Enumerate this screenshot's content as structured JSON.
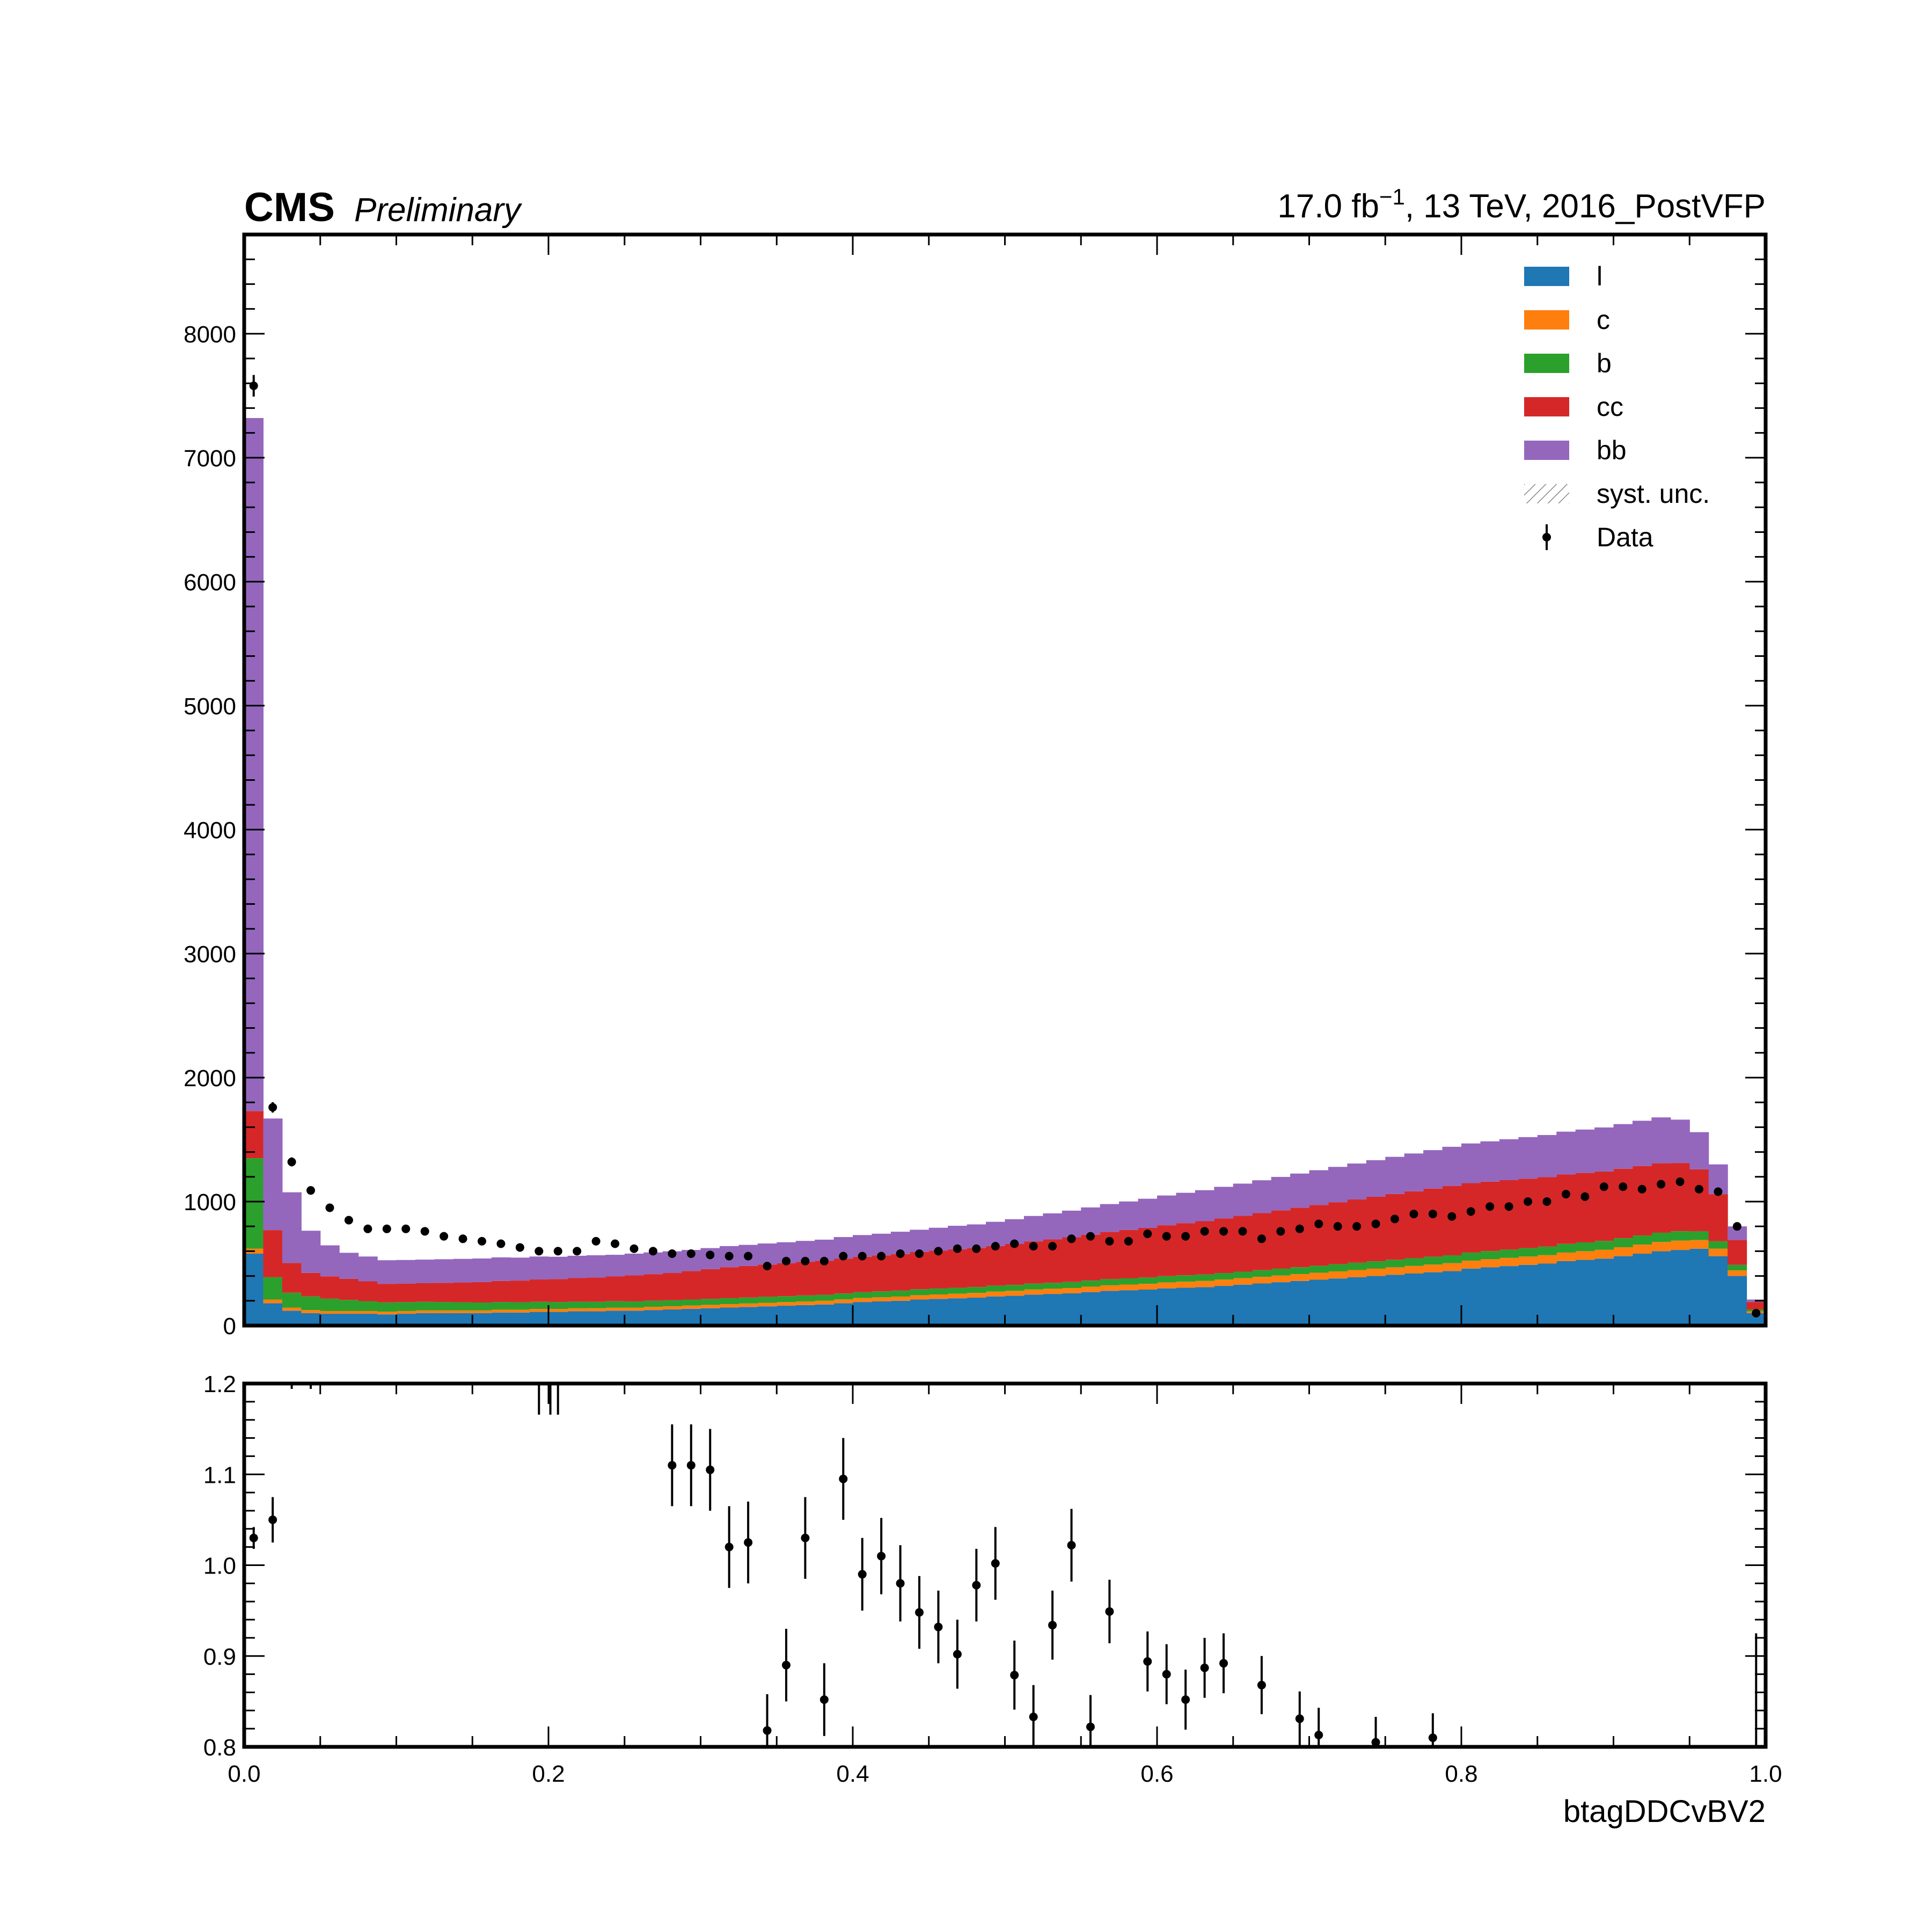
{
  "header": {
    "experiment": "CMS",
    "status": "Preliminary",
    "lumi_value": "17.0 fb",
    "lumi_exp": "−1",
    "lumi_rest": ", 13 TeV, 2016_PostVFP"
  },
  "chart_data": {
    "type": "bar",
    "stacked": true,
    "xlabel": "btagDDCvBV2",
    "ylabel": "",
    "xlim": [
      0.0,
      1.0
    ],
    "ylim": [
      0,
      8800
    ],
    "ratio_ylim": [
      0.8,
      1.2
    ],
    "legend_position": "top-right",
    "x_ticks": [
      "0.0",
      "0.2",
      "0.4",
      "0.6",
      "0.8",
      "1.0"
    ],
    "y_ticks": [
      "0",
      "1000",
      "2000",
      "3000",
      "4000",
      "5000",
      "6000",
      "7000",
      "8000"
    ],
    "ratio_y_ticks": [
      "0.8",
      "0.9",
      "1.0",
      "1.1",
      "1.2"
    ],
    "bins": 80,
    "series": [
      {
        "name": "l",
        "color": "#1f77b4",
        "values": [
          580,
          180,
          120,
          100,
          95,
          95,
          95,
          90,
          95,
          100,
          100,
          100,
          100,
          105,
          105,
          110,
          110,
          115,
          115,
          120,
          120,
          125,
          130,
          135,
          140,
          145,
          150,
          155,
          160,
          165,
          170,
          180,
          190,
          195,
          200,
          210,
          215,
          220,
          225,
          235,
          240,
          250,
          255,
          260,
          270,
          280,
          285,
          290,
          300,
          305,
          310,
          320,
          330,
          340,
          350,
          360,
          370,
          380,
          390,
          400,
          410,
          420,
          430,
          440,
          460,
          470,
          480,
          490,
          500,
          520,
          530,
          540,
          560,
          580,
          600,
          610,
          620,
          560,
          400,
          100
        ]
      },
      {
        "name": "c",
        "color": "#ff7f0e",
        "values": [
          40,
          30,
          25,
          25,
          22,
          22,
          22,
          22,
          22,
          22,
          22,
          22,
          22,
          23,
          23,
          24,
          24,
          24,
          25,
          25,
          25,
          26,
          26,
          27,
          27,
          28,
          28,
          29,
          29,
          30,
          30,
          31,
          32,
          33,
          34,
          35,
          36,
          37,
          38,
          39,
          40,
          41,
          42,
          43,
          44,
          45,
          46,
          47,
          48,
          49,
          50,
          51,
          52,
          53,
          54,
          55,
          56,
          57,
          58,
          59,
          60,
          61,
          62,
          63,
          64,
          65,
          66,
          67,
          68,
          69,
          70,
          71,
          72,
          73,
          74,
          75,
          70,
          60,
          45,
          15
        ]
      },
      {
        "name": "b",
        "color": "#2ca02c",
        "values": [
          730,
          180,
          120,
          110,
          100,
          90,
          80,
          75,
          72,
          70,
          68,
          66,
          64,
          62,
          60,
          58,
          56,
          54,
          52,
          51,
          50,
          49,
          48,
          48,
          48,
          48,
          48,
          48,
          48,
          48,
          48,
          48,
          48,
          48,
          48,
          48,
          48,
          48,
          48,
          48,
          48,
          48,
          48,
          49,
          49,
          50,
          50,
          51,
          51,
          52,
          52,
          53,
          53,
          54,
          55,
          56,
          57,
          58,
          59,
          60,
          61,
          62,
          63,
          64,
          65,
          66,
          67,
          68,
          69,
          70,
          71,
          72,
          73,
          74,
          75,
          76,
          70,
          60,
          45,
          15
        ]
      },
      {
        "name": "cc",
        "color": "#d62728",
        "values": [
          380,
          380,
          240,
          190,
          180,
          170,
          160,
          150,
          150,
          150,
          155,
          160,
          165,
          170,
          175,
          180,
          185,
          190,
          195,
          200,
          210,
          215,
          220,
          230,
          240,
          250,
          255,
          260,
          265,
          270,
          275,
          280,
          285,
          290,
          295,
          300,
          305,
          310,
          315,
          320,
          330,
          340,
          350,
          360,
          370,
          380,
          390,
          400,
          410,
          420,
          430,
          440,
          450,
          460,
          470,
          480,
          490,
          500,
          510,
          520,
          530,
          540,
          550,
          560,
          560,
          560,
          560,
          560,
          560,
          560,
          560,
          560,
          560,
          560,
          560,
          550,
          500,
          380,
          200,
          60
        ]
      },
      {
        "name": "bb",
        "color": "#9467bd",
        "values": [
          5590,
          900,
          570,
          340,
          250,
          210,
          200,
          190,
          190,
          190,
          190,
          190,
          190,
          190,
          185,
          185,
          180,
          180,
          180,
          175,
          175,
          175,
          175,
          170,
          170,
          170,
          170,
          170,
          170,
          170,
          170,
          175,
          175,
          175,
          180,
          180,
          185,
          190,
          190,
          195,
          200,
          205,
          210,
          215,
          220,
          225,
          230,
          235,
          240,
          245,
          250,
          255,
          260,
          265,
          270,
          275,
          280,
          285,
          290,
          295,
          300,
          305,
          310,
          315,
          320,
          325,
          330,
          335,
          340,
          345,
          350,
          355,
          360,
          365,
          370,
          350,
          300,
          240,
          110,
          20
        ]
      },
      {
        "name": "syst. unc.",
        "color": "#777777",
        "values": []
      }
    ],
    "data_name": "Data",
    "data_values": [
      7580,
      1760,
      1320,
      1090,
      950,
      850,
      780,
      780,
      780,
      760,
      720,
      700,
      680,
      660,
      630,
      600,
      600,
      600,
      680,
      660,
      620,
      600,
      580,
      580,
      570,
      560,
      560,
      480,
      520,
      520,
      520,
      560,
      560,
      560,
      580,
      580,
      600,
      620,
      620,
      640,
      660,
      640,
      640,
      700,
      720,
      680,
      680,
      740,
      720,
      720,
      760,
      760,
      760,
      700,
      760,
      780,
      820,
      800,
      800,
      820,
      860,
      900,
      900,
      880,
      920,
      960,
      960,
      1000,
      1000,
      1060,
      1040,
      1120,
      1120,
      1100,
      1140,
      1160,
      1100,
      1080,
      800,
      100
    ],
    "data_bin_centers": [
      0.00625,
      0.01875,
      0.03125,
      0.04375,
      0.05625,
      0.06875,
      0.08125,
      0.09375,
      0.10625,
      0.11875,
      0.13125,
      0.14375,
      0.15625,
      0.16875,
      0.18125,
      0.19375,
      0.20625,
      0.21875,
      0.23125,
      0.24375,
      0.25625,
      0.26875,
      0.28125,
      0.29375,
      0.30625,
      0.31875,
      0.33125,
      0.34375,
      0.35625,
      0.36875,
      0.38125,
      0.39375,
      0.40625,
      0.41875,
      0.43125,
      0.44375,
      0.45625,
      0.46875,
      0.48125,
      0.49375,
      0.50625,
      0.51875,
      0.53125,
      0.54375,
      0.55625,
      0.56875,
      0.58125,
      0.59375,
      0.60625,
      0.61875,
      0.63125,
      0.64375,
      0.65625,
      0.66875,
      0.68125,
      0.69375,
      0.70625,
      0.71875,
      0.73125,
      0.74375,
      0.75625,
      0.76875,
      0.78125,
      0.79375,
      0.80625,
      0.81875,
      0.83125,
      0.84375,
      0.85625,
      0.86875,
      0.88125,
      0.89375,
      0.90625,
      0.91875,
      0.93125,
      0.94375,
      0.95625,
      0.96875,
      0.98125,
      0.99375
    ],
    "ratio_points": [
      {
        "x": 0.00625,
        "y": 1.03,
        "err": 0.012
      },
      {
        "x": 0.01875,
        "y": 1.05,
        "err": 0.025
      },
      {
        "x": 0.28125,
        "y": 1.11,
        "err": 0.045
      },
      {
        "x": 0.29375,
        "y": 1.11,
        "err": 0.045
      },
      {
        "x": 0.30625,
        "y": 1.105,
        "err": 0.045
      },
      {
        "x": 0.31875,
        "y": 1.02,
        "err": 0.045
      },
      {
        "x": 0.33125,
        "y": 1.025,
        "err": 0.045
      },
      {
        "x": 0.34375,
        "y": 0.818,
        "err": 0.04
      },
      {
        "x": 0.35625,
        "y": 0.89,
        "err": 0.04
      },
      {
        "x": 0.36875,
        "y": 1.03,
        "err": 0.045
      },
      {
        "x": 0.38125,
        "y": 0.852,
        "err": 0.04
      },
      {
        "x": 0.39375,
        "y": 1.095,
        "err": 0.045
      },
      {
        "x": 0.40625,
        "y": 0.99,
        "err": 0.04
      },
      {
        "x": 0.41875,
        "y": 1.01,
        "err": 0.042
      },
      {
        "x": 0.43125,
        "y": 0.98,
        "err": 0.042
      },
      {
        "x": 0.44375,
        "y": 0.948,
        "err": 0.04
      },
      {
        "x": 0.45625,
        "y": 0.932,
        "err": 0.04
      },
      {
        "x": 0.46875,
        "y": 0.902,
        "err": 0.038
      },
      {
        "x": 0.48125,
        "y": 0.978,
        "err": 0.04
      },
      {
        "x": 0.49375,
        "y": 1.002,
        "err": 0.04
      },
      {
        "x": 0.50625,
        "y": 0.879,
        "err": 0.038
      },
      {
        "x": 0.51875,
        "y": 0.833,
        "err": 0.035
      },
      {
        "x": 0.53125,
        "y": 0.934,
        "err": 0.038
      },
      {
        "x": 0.54375,
        "y": 1.022,
        "err": 0.04
      },
      {
        "x": 0.55625,
        "y": 0.822,
        "err": 0.035
      },
      {
        "x": 0.56875,
        "y": 0.949,
        "err": 0.035
      },
      {
        "x": 0.59375,
        "y": 0.894,
        "err": 0.033
      },
      {
        "x": 0.60625,
        "y": 0.88,
        "err": 0.033
      },
      {
        "x": 0.61875,
        "y": 0.852,
        "err": 0.033
      },
      {
        "x": 0.63125,
        "y": 0.887,
        "err": 0.033
      },
      {
        "x": 0.64375,
        "y": 0.892,
        "err": 0.033
      },
      {
        "x": 0.66875,
        "y": 0.868,
        "err": 0.032
      },
      {
        "x": 0.69375,
        "y": 0.831,
        "err": 0.03
      },
      {
        "x": 0.70625,
        "y": 0.813,
        "err": 0.03
      },
      {
        "x": 0.74375,
        "y": 0.805,
        "err": 0.028
      },
      {
        "x": 0.78125,
        "y": 0.81,
        "err": 0.027
      }
    ]
  }
}
